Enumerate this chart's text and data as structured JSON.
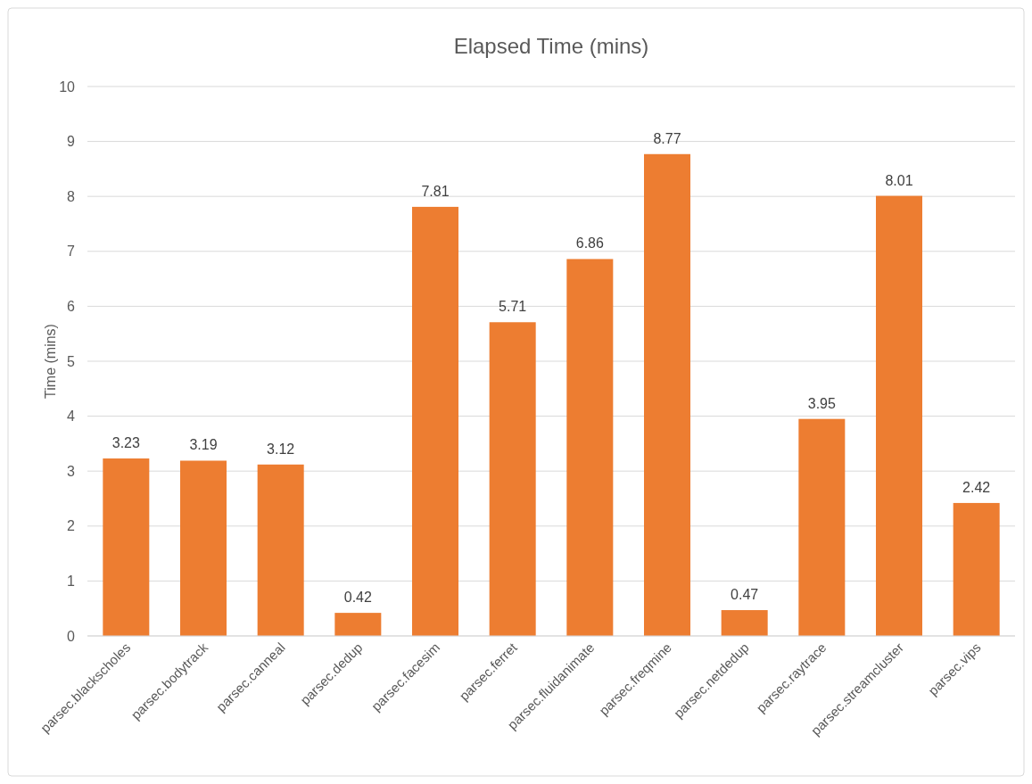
{
  "chart_data": {
    "type": "bar",
    "title": "Elapsed Time (mins)",
    "ylabel": "Time (mins)",
    "categories": [
      "parsec.blackscholes",
      "parsec.bodytrack",
      "parsec.canneal",
      "parsec.dedup",
      "parsec.facesim",
      "parsec.ferret",
      "parsec.fluidanimate",
      "parsec.freqmine",
      "parsec.netdedup",
      "parsec.raytrace",
      "parsec.streamcluster",
      "parsec.vips"
    ],
    "values": [
      3.23,
      3.19,
      3.12,
      0.42,
      7.81,
      5.71,
      6.86,
      8.77,
      0.47,
      3.95,
      8.01,
      2.42
    ],
    "color": "#ed7d31",
    "ylim": [
      0,
      10
    ],
    "yticks": [
      0,
      1,
      2,
      3,
      4,
      5,
      6,
      7,
      8,
      9,
      10
    ],
    "grid": "y",
    "data_labels": true
  }
}
